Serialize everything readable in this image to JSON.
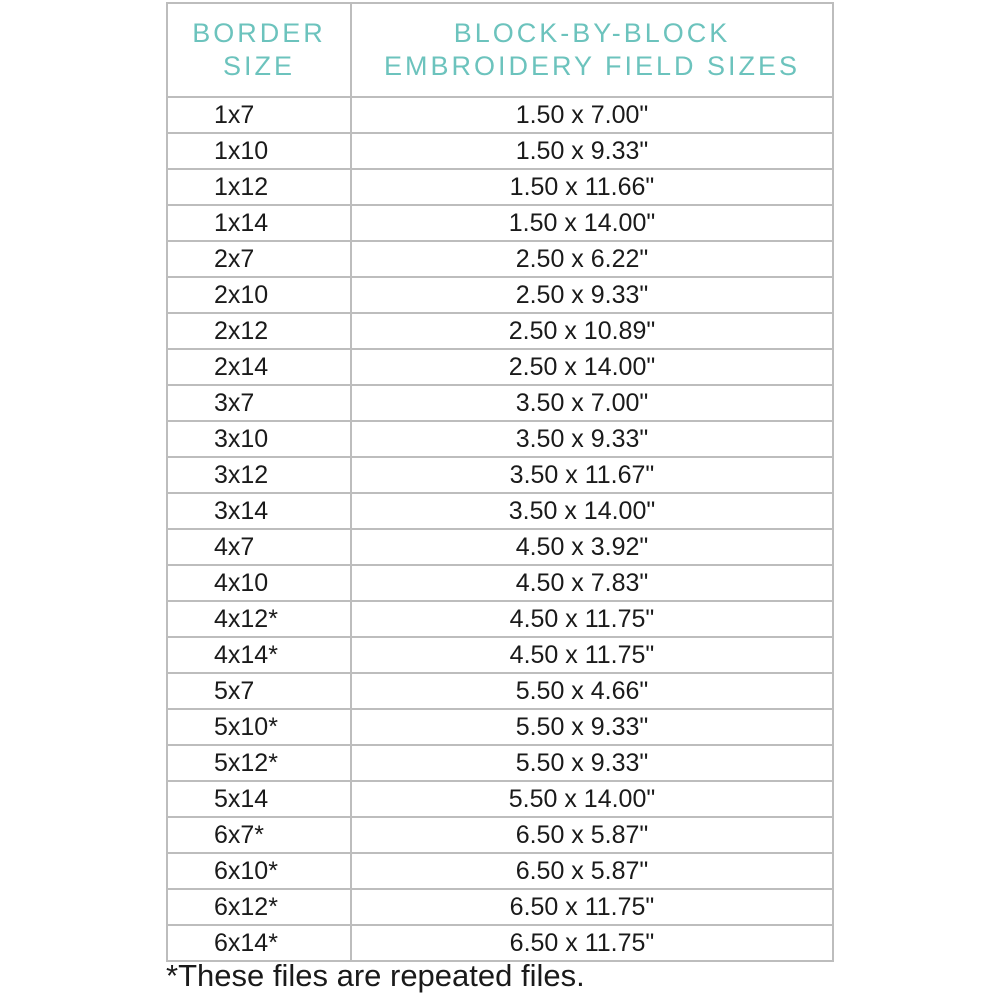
{
  "header": {
    "col1": [
      "BORDER",
      "SIZE"
    ],
    "col2": [
      "BLOCK-BY-BLOCK",
      "EMBROIDERY FIELD SIZES"
    ]
  },
  "rows": [
    [
      "1x7",
      "1.50 x 7.00\""
    ],
    [
      "1x10",
      "1.50 x 9.33\""
    ],
    [
      "1x12",
      "1.50 x 11.66\""
    ],
    [
      "1x14",
      "1.50 x 14.00\""
    ],
    [
      "2x7",
      "2.50 x 6.22\""
    ],
    [
      "2x10",
      "2.50 x 9.33\""
    ],
    [
      "2x12",
      "2.50 x 10.89\""
    ],
    [
      "2x14",
      "2.50 x 14.00\""
    ],
    [
      "3x7",
      "3.50 x 7.00\""
    ],
    [
      "3x10",
      "3.50 x 9.33\""
    ],
    [
      "3x12",
      "3.50 x 11.67\""
    ],
    [
      "3x14",
      "3.50 x 14.00\""
    ],
    [
      "4x7",
      "4.50 x 3.92\""
    ],
    [
      "4x10",
      "4.50 x 7.83\""
    ],
    [
      "4x12*",
      "4.50 x 11.75\""
    ],
    [
      "4x14*",
      "4.50 x 11.75\""
    ],
    [
      "5x7",
      "5.50 x 4.66\""
    ],
    [
      "5x10*",
      "5.50 x 9.33\""
    ],
    [
      "5x12*",
      "5.50 x 9.33\""
    ],
    [
      "5x14",
      "5.50 x 14.00\""
    ],
    [
      "6x7*",
      "6.50 x 5.87\""
    ],
    [
      "6x10*",
      "6.50 x 5.87\""
    ],
    [
      "6x12*",
      "6.50 x 11.75\""
    ],
    [
      "6x14*",
      "6.50 x 11.75\""
    ]
  ],
  "footnote": "*These files are repeated files.",
  "colors": {
    "header_text": "#6cc3bd",
    "border": "#bdbdbd"
  }
}
